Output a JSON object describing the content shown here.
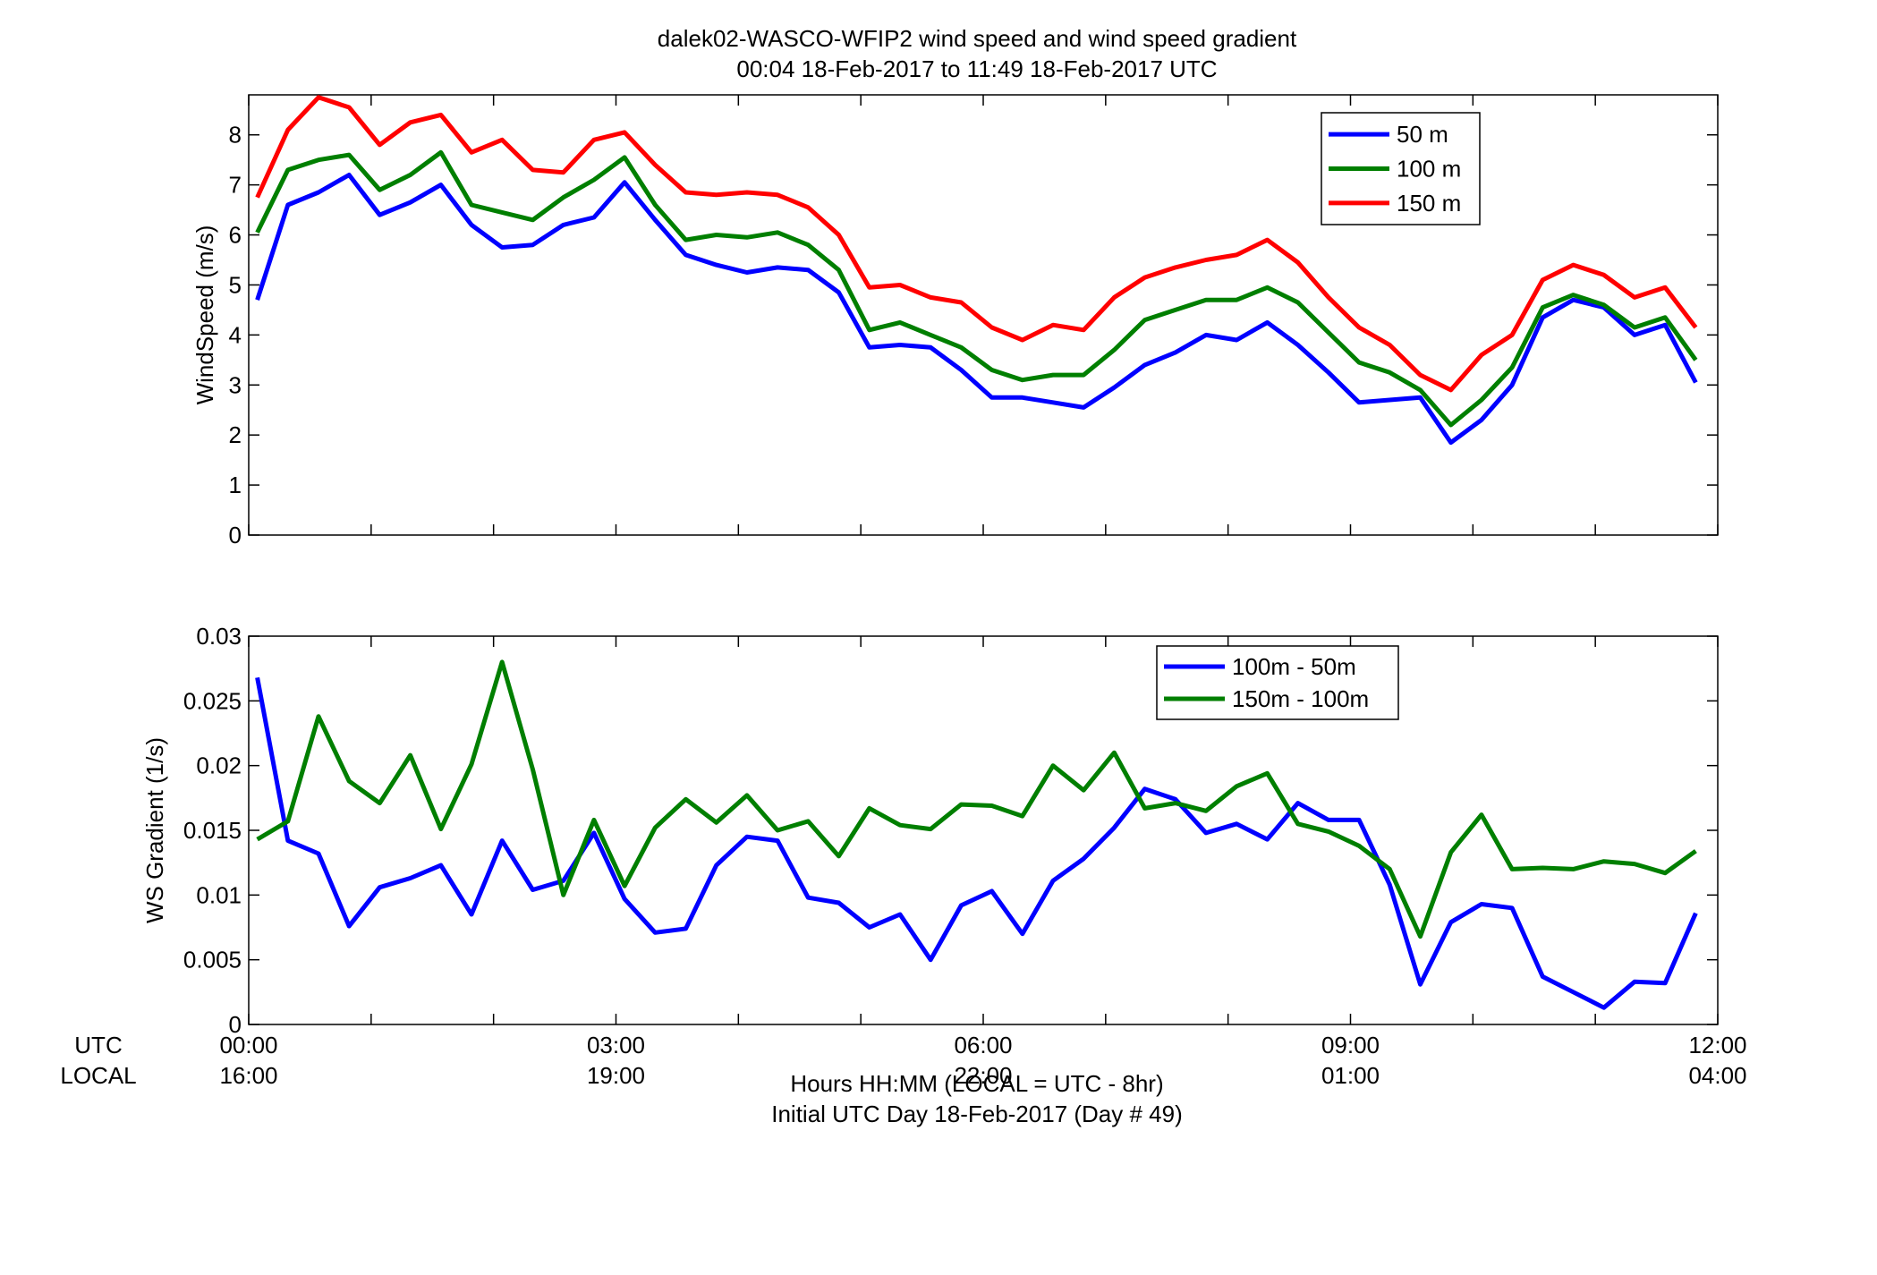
{
  "title_line1": "dalek02-WASCO-WFIP2  wind speed and wind speed gradient",
  "title_line2": "00:04 18-Feb-2017 to 11:49 18-Feb-2017  UTC",
  "xlabel_line1": "Hours HH:MM  (LOCAL = UTC - 8hr)",
  "xlabel_line2": "Initial UTC Day 18-Feb-2017 (Day # 49)",
  "row_label_utc": "UTC",
  "row_label_local": "LOCAL",
  "x_ticks_utc": [
    "00:00",
    "03:00",
    "06:00",
    "09:00",
    "12:00"
  ],
  "x_ticks_local": [
    "16:00",
    "19:00",
    "22:00",
    "01:00",
    "04:00"
  ],
  "colors": {
    "blue": "#0000ff",
    "green": "#007f00",
    "red": "#ff0000"
  },
  "chart_data": [
    {
      "type": "line",
      "ylabel": "WindSpeed (m/s)",
      "xlim": [
        0,
        12
      ],
      "ylim": [
        0,
        8.8
      ],
      "yticks": [
        "0",
        "1",
        "2",
        "3",
        "4",
        "5",
        "6",
        "7",
        "8"
      ],
      "grid": false,
      "legend_position": "top-right",
      "x": [
        0.07,
        0.32,
        0.57,
        0.82,
        1.07,
        1.32,
        1.57,
        1.82,
        2.07,
        2.32,
        2.57,
        2.82,
        3.07,
        3.32,
        3.57,
        3.82,
        4.07,
        4.32,
        4.57,
        4.82,
        5.07,
        5.32,
        5.57,
        5.82,
        6.07,
        6.32,
        6.57,
        6.82,
        7.07,
        7.32,
        7.57,
        7.82,
        8.07,
        8.32,
        8.57,
        8.82,
        9.07,
        9.32,
        9.57,
        9.82,
        10.07,
        10.32,
        10.57,
        10.82,
        11.07,
        11.32,
        11.57,
        11.82
      ],
      "series": [
        {
          "name": "50 m",
          "color": "#0000ff",
          "values": [
            4.7,
            6.6,
            6.85,
            7.2,
            6.4,
            6.65,
            7.0,
            6.2,
            5.75,
            5.8,
            6.2,
            6.35,
            7.05,
            6.3,
            5.6,
            5.4,
            5.25,
            5.35,
            5.3,
            4.85,
            3.75,
            3.8,
            3.75,
            3.3,
            2.75,
            2.75,
            2.65,
            2.55,
            2.95,
            3.4,
            3.65,
            4.0,
            3.9,
            4.25,
            3.8,
            3.25,
            2.65,
            2.7,
            2.75,
            1.85,
            2.3,
            3.0,
            4.35,
            4.7,
            4.55,
            4.0,
            4.2,
            3.05
          ]
        },
        {
          "name": "100 m",
          "color": "#007f00",
          "values": [
            6.05,
            7.3,
            7.5,
            7.6,
            6.9,
            7.2,
            7.65,
            6.6,
            6.45,
            6.3,
            6.75,
            7.1,
            7.55,
            6.6,
            5.9,
            6.0,
            5.95,
            6.05,
            5.8,
            5.3,
            4.1,
            4.25,
            4.0,
            3.75,
            3.3,
            3.1,
            3.2,
            3.2,
            3.7,
            4.3,
            4.5,
            4.7,
            4.7,
            4.95,
            4.65,
            4.05,
            3.45,
            3.25,
            2.9,
            2.2,
            2.7,
            3.35,
            4.55,
            4.8,
            4.6,
            4.15,
            4.35,
            3.5
          ]
        },
        {
          "name": "150 m",
          "color": "#ff0000",
          "values": [
            6.75,
            8.1,
            8.75,
            8.55,
            7.8,
            8.25,
            8.4,
            7.65,
            7.9,
            7.3,
            7.25,
            7.9,
            8.05,
            7.4,
            6.85,
            6.8,
            6.85,
            6.8,
            6.55,
            6.0,
            4.95,
            5.0,
            4.75,
            4.65,
            4.15,
            3.9,
            4.2,
            4.1,
            4.75,
            5.15,
            5.35,
            5.5,
            5.6,
            5.9,
            5.45,
            4.75,
            4.15,
            3.8,
            3.2,
            2.9,
            3.6,
            4.0,
            5.1,
            5.4,
            5.2,
            4.75,
            4.95,
            4.15
          ]
        }
      ]
    },
    {
      "type": "line",
      "ylabel": "WS Gradient (1/s)",
      "xlim": [
        0,
        12
      ],
      "ylim": [
        0,
        0.03
      ],
      "yticks": [
        "0",
        "0.005",
        "0.01",
        "0.015",
        "0.02",
        "0.025",
        "0.03"
      ],
      "grid": false,
      "legend_position": "top-right",
      "x": [
        0.07,
        0.32,
        0.57,
        0.82,
        1.07,
        1.32,
        1.57,
        1.82,
        2.07,
        2.32,
        2.57,
        2.82,
        3.07,
        3.32,
        3.57,
        3.82,
        4.07,
        4.32,
        4.57,
        4.82,
        5.07,
        5.32,
        5.57,
        5.82,
        6.07,
        6.32,
        6.57,
        6.82,
        7.07,
        7.32,
        7.57,
        7.82,
        8.07,
        8.32,
        8.57,
        8.82,
        9.07,
        9.32,
        9.57,
        9.82,
        10.07,
        10.32,
        10.57,
        10.82,
        11.07,
        11.32,
        11.57,
        11.82
      ],
      "series": [
        {
          "name": "100m - 50m",
          "color": "#0000ff",
          "values": [
            0.0268,
            0.0142,
            0.0132,
            0.0076,
            0.0106,
            0.0113,
            0.0123,
            0.0085,
            0.0142,
            0.0104,
            0.0111,
            0.0148,
            0.0097,
            0.0071,
            0.0074,
            0.0123,
            0.0145,
            0.0142,
            0.0098,
            0.0094,
            0.0075,
            0.0085,
            0.005,
            0.0092,
            0.0103,
            0.007,
            0.0111,
            0.0128,
            0.0152,
            0.0182,
            0.0174,
            0.0148,
            0.0155,
            0.0143,
            0.0171,
            0.0158,
            0.0158,
            0.0108,
            0.0031,
            0.0079,
            0.0093,
            0.009,
            0.0037,
            0.0025,
            0.0013,
            0.0033,
            0.0032,
            0.0086
          ]
        },
        {
          "name": "150m - 100m",
          "color": "#007f00",
          "values": [
            0.0143,
            0.0157,
            0.0238,
            0.0188,
            0.0171,
            0.0208,
            0.0151,
            0.0201,
            0.028,
            0.0197,
            0.01,
            0.0158,
            0.0107,
            0.0152,
            0.0174,
            0.0156,
            0.0177,
            0.015,
            0.0157,
            0.013,
            0.0167,
            0.0154,
            0.0151,
            0.017,
            0.0169,
            0.0161,
            0.02,
            0.0181,
            0.021,
            0.0167,
            0.0171,
            0.0165,
            0.0184,
            0.0194,
            0.0155,
            0.0149,
            0.0138,
            0.012,
            0.0068,
            0.0133,
            0.0162,
            0.012,
            0.0121,
            0.012,
            0.0126,
            0.0124,
            0.0117,
            0.0134
          ]
        }
      ]
    }
  ]
}
